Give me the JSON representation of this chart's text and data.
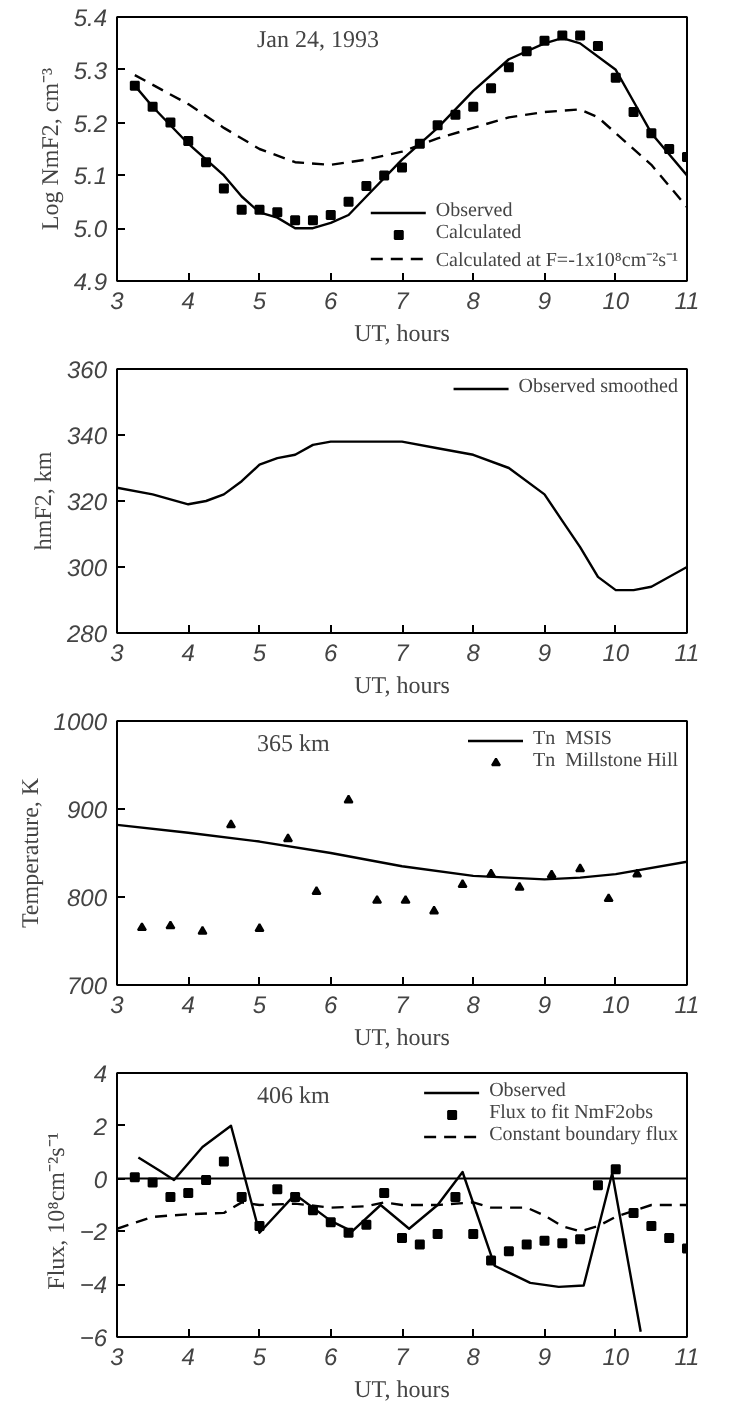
{
  "chart_data": [
    {
      "type": "line",
      "xlabel": "UT, hours",
      "ylabel": "Log NmF2, cm⁻³",
      "xlim": [
        3,
        11
      ],
      "xticks": [
        3,
        4,
        5,
        6,
        7,
        8,
        9,
        10,
        11
      ],
      "ylim": [
        4.9,
        5.4
      ],
      "yticks": [
        {
          "value": 4.9,
          "label": "4.9"
        },
        {
          "value": 5.0,
          "label": "5.0"
        },
        {
          "value": 5.1,
          "label": "5.1"
        },
        {
          "value": 5.2,
          "label": "5.2"
        },
        {
          "value": 5.3,
          "label": "5.3"
        },
        {
          "value": 5.4,
          "label": "5.4"
        }
      ],
      "grid": false,
      "legend": "bottom right",
      "annotations": [
        {
          "text": "Jan 24, 1993"
        }
      ],
      "series": [
        {
          "name": "Observed",
          "color": "#000000",
          "line_style": "solid",
          "x": [
            3.25,
            3.5,
            4,
            4.5,
            4.75,
            5,
            5.25,
            5.5,
            5.75,
            6,
            6.25,
            6.5,
            7,
            7.5,
            8,
            8.5,
            9,
            9.25,
            9.5,
            10,
            10.25,
            10.5,
            11
          ],
          "values": [
            5.27,
            5.23,
            5.16,
            5.1,
            5.06,
            5.03,
            5.02,
            5.0,
            5.0,
            5.01,
            5.025,
            5.06,
            5.13,
            5.19,
            5.26,
            5.32,
            5.35,
            5.36,
            5.35,
            5.3,
            5.24,
            5.18,
            5.1
          ]
        },
        {
          "name": "Calculated",
          "type": "scatter",
          "marker": "square",
          "color": "#000000",
          "x": [
            3.25,
            3.5,
            3.75,
            4,
            4.25,
            4.5,
            4.75,
            5,
            5.25,
            5.5,
            5.75,
            6,
            6.25,
            6.5,
            6.75,
            7,
            7.25,
            7.5,
            7.75,
            8,
            8.25,
            8.5,
            8.75,
            9,
            9.25,
            9.5,
            9.75,
            10,
            10.25,
            10.5,
            10.75,
            11
          ],
          "values": [
            5.27,
            5.23,
            5.2,
            5.165,
            5.125,
            5.075,
            5.035,
            5.035,
            5.03,
            5.015,
            5.015,
            5.025,
            5.05,
            5.08,
            5.1,
            5.115,
            5.16,
            5.195,
            5.215,
            5.23,
            5.265,
            5.305,
            5.335,
            5.355,
            5.365,
            5.365,
            5.345,
            5.285,
            5.22,
            5.18,
            5.15,
            5.135
          ]
        },
        {
          "name": "Calculated at F=-1x10⁸cm⁻²s⁻¹",
          "color": "#000000",
          "line_style": "dashed",
          "x": [
            3.25,
            4,
            4.5,
            5,
            5.5,
            6,
            6.5,
            7,
            7.5,
            8,
            8.5,
            9,
            9.5,
            9.75,
            10,
            10.5,
            11
          ],
          "values": [
            5.29,
            5.235,
            5.19,
            5.15,
            5.125,
            5.12,
            5.13,
            5.145,
            5.17,
            5.19,
            5.21,
            5.22,
            5.225,
            5.21,
            5.18,
            5.12,
            5.04
          ]
        }
      ]
    },
    {
      "type": "line",
      "xlabel": "UT, hours",
      "ylabel": "hmF2, km",
      "xlim": [
        3,
        11
      ],
      "xticks": [
        3,
        4,
        5,
        6,
        7,
        8,
        9,
        10,
        11
      ],
      "ylim": [
        280,
        360
      ],
      "yticks": [
        280,
        300,
        320,
        340,
        360
      ],
      "grid": false,
      "legend": "top right",
      "series": [
        {
          "name": "Observed smoothed",
          "color": "#000000",
          "line_style": "solid",
          "x": [
            3,
            3.5,
            4,
            4.25,
            4.5,
            4.75,
            5,
            5.25,
            5.5,
            5.75,
            6,
            7,
            7.5,
            8,
            8.5,
            9,
            9.25,
            9.5,
            9.75,
            10,
            10.25,
            10.5,
            11
          ],
          "values": [
            324,
            322,
            319,
            320,
            322,
            326,
            331,
            333,
            334,
            337,
            338,
            338,
            336,
            334,
            330,
            322,
            314,
            306,
            297,
            293,
            293,
            294,
            300
          ]
        }
      ]
    },
    {
      "type": "line",
      "xlabel": "UT, hours",
      "ylabel": "Temperature, K",
      "xlim": [
        3,
        11
      ],
      "xticks": [
        3,
        4,
        5,
        6,
        7,
        8,
        9,
        10,
        11
      ],
      "ylim": [
        700,
        1000
      ],
      "yticks": [
        700,
        800,
        900,
        1000
      ],
      "grid": false,
      "legend": "top right",
      "annotations": [
        {
          "text": "365 km"
        }
      ],
      "series": [
        {
          "name": "Tn  MSIS",
          "color": "#000000",
          "line_style": "solid",
          "x": [
            3,
            4,
            5,
            6,
            7,
            8,
            8.5,
            9,
            9.5,
            10,
            11
          ],
          "values": [
            882,
            873,
            863,
            850,
            835,
            824,
            822,
            820,
            822,
            826,
            840
          ]
        },
        {
          "name": "Tn  Millstone Hill",
          "type": "scatter",
          "marker": "triangle",
          "color": "#000000",
          "x": [
            3.35,
            3.75,
            4.2,
            4.6,
            5,
            5.4,
            5.8,
            6.25,
            6.65,
            7.05,
            7.45,
            7.85,
            8.25,
            8.65,
            9.1,
            9.5,
            9.9,
            10.3
          ],
          "values": [
            765,
            767,
            761,
            882,
            764,
            866,
            806,
            910,
            796,
            796,
            784,
            814,
            826,
            811,
            825,
            832,
            798,
            826
          ]
        }
      ]
    },
    {
      "type": "line",
      "xlabel": "UT, hours",
      "ylabel": "Flux,   10⁸cm⁻²s⁻¹",
      "xlim": [
        3,
        11
      ],
      "xticks": [
        3,
        4,
        5,
        6,
        7,
        8,
        9,
        10,
        11
      ],
      "ylim": [
        -6,
        4
      ],
      "yticks": [
        {
          "value": -6,
          "label": "−6"
        },
        {
          "value": -4,
          "label": "−4"
        },
        {
          "value": -2,
          "label": "−2"
        },
        0,
        2,
        4
      ],
      "grid": false,
      "legend": "top right",
      "annotations": [
        {
          "text": "406 km"
        }
      ],
      "ref_lines": [
        {
          "axis": "y",
          "value": 0,
          "color": "#000000",
          "line_style": "solid"
        }
      ],
      "series": [
        {
          "name": "Observed",
          "color": "#000000",
          "line_style": "solid",
          "x": [
            3.3,
            3.6,
            3.8,
            4.2,
            4.6,
            5.0,
            5.5,
            6,
            6.3,
            6.7,
            7.1,
            7.5,
            7.85,
            8.3,
            8.8,
            9.2,
            9.55,
            9.95,
            10.35
          ],
          "values": [
            0.8,
            0.3,
            -0.05,
            1.2,
            2.0,
            -2.05,
            -0.6,
            -1.6,
            -2.0,
            -1.0,
            -1.9,
            -1.0,
            0.25,
            -3.3,
            -3.95,
            -4.1,
            -4.05,
            0.2,
            -5.8
          ]
        },
        {
          "name": "Flux to fit NmF2obs",
          "type": "scatter",
          "marker": "square",
          "color": "#000000",
          "x": [
            3.25,
            3.5,
            3.75,
            4,
            4.25,
            4.5,
            4.75,
            5,
            5.25,
            5.5,
            5.75,
            6,
            6.25,
            6.5,
            6.75,
            7,
            7.25,
            7.5,
            7.75,
            8,
            8.25,
            8.5,
            8.75,
            9,
            9.25,
            9.5,
            9.75,
            10,
            10.25,
            10.5,
            10.75,
            11
          ],
          "values": [
            0.05,
            -0.15,
            -0.7,
            -0.55,
            -0.05,
            0.65,
            -0.7,
            -1.8,
            -0.4,
            -0.7,
            -1.2,
            -1.65,
            -2.05,
            -1.75,
            -0.55,
            -2.25,
            -2.5,
            -2.1,
            -0.7,
            -2.1,
            -3.1,
            -2.75,
            -2.5,
            -2.35,
            -2.45,
            -2.3,
            -0.25,
            0.35,
            -1.3,
            -1.8,
            -2.25,
            -2.65
          ]
        },
        {
          "name": "Constant boundary flux",
          "color": "#000000",
          "line_style": "dashed",
          "x": [
            3,
            3.5,
            4,
            4.5,
            4.75,
            5,
            5.5,
            6,
            6.5,
            6.75,
            7,
            7.5,
            8,
            8.25,
            8.75,
            9,
            9.25,
            9.5,
            9.75,
            10,
            10.5,
            11
          ],
          "values": [
            -1.9,
            -1.45,
            -1.35,
            -1.3,
            -0.9,
            -1.0,
            -0.95,
            -1.1,
            -1.05,
            -0.9,
            -1.0,
            -1.0,
            -0.9,
            -1.1,
            -1.1,
            -1.4,
            -1.8,
            -2.0,
            -1.8,
            -1.45,
            -1.0,
            -1.0
          ]
        }
      ]
    }
  ]
}
